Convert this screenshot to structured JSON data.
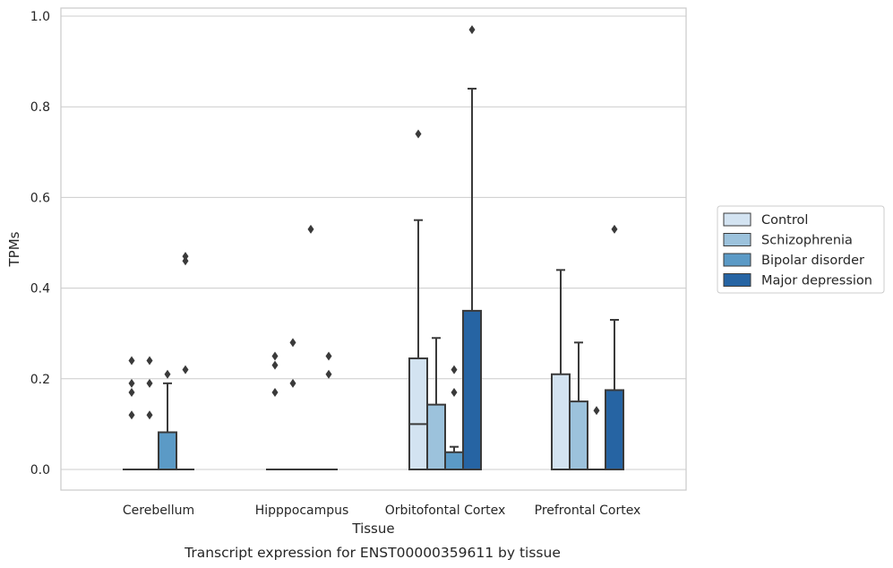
{
  "chart_data": {
    "type": "box",
    "xlabel": "Tissue",
    "ylabel": "TPMs",
    "caption": "Transcript expression for ENST00000359611 by tissue",
    "categories": [
      "Cerebellum",
      "Hipppocampus",
      "Orbitofontal Cortex",
      "Prefrontal Cortex"
    ],
    "ylim": [
      -0.048,
      1.02
    ],
    "yticks": [
      "0.0",
      "0.2",
      "0.4",
      "0.6",
      "0.8",
      "1.0"
    ],
    "ytick_values": [
      0,
      0.2,
      0.4,
      0.6,
      0.8,
      1.0
    ],
    "grid": "horizontal",
    "legend_position": "right",
    "series": [
      {
        "name": "Control",
        "color": "#d3e3f1",
        "boxes": [
          {
            "q1": 0,
            "median": 0,
            "q3": 0,
            "whisker_low": 0,
            "whisker_high": 0,
            "outliers": [
              0.12,
              0.17,
              0.19,
              0.24
            ]
          },
          {
            "q1": 0,
            "median": 0,
            "q3": 0,
            "whisker_low": 0,
            "whisker_high": 0,
            "outliers": [
              0.17,
              0.23,
              0.25
            ]
          },
          {
            "q1": 0,
            "median": 0.1,
            "q3": 0.245,
            "whisker_low": 0,
            "whisker_high": 0.55,
            "outliers": [
              0.74
            ]
          },
          {
            "q1": 0,
            "median": 0,
            "q3": 0.21,
            "whisker_low": 0,
            "whisker_high": 0.44,
            "outliers": []
          }
        ]
      },
      {
        "name": "Schizophrenia",
        "color": "#9cc2dc",
        "boxes": [
          {
            "q1": 0,
            "median": 0,
            "q3": 0,
            "whisker_low": 0,
            "whisker_high": 0,
            "outliers": [
              0.12,
              0.19,
              0.24
            ]
          },
          {
            "q1": 0,
            "median": 0,
            "q3": 0,
            "whisker_low": 0,
            "whisker_high": 0,
            "outliers": [
              0.19,
              0.28
            ]
          },
          {
            "q1": 0,
            "median": 0,
            "q3": 0.143,
            "whisker_low": 0,
            "whisker_high": 0.29,
            "outliers": []
          },
          {
            "q1": 0,
            "median": 0,
            "q3": 0.15,
            "whisker_low": 0,
            "whisker_high": 0.28,
            "outliers": []
          }
        ]
      },
      {
        "name": "Bipolar disorder",
        "color": "#5b9ac6",
        "boxes": [
          {
            "q1": 0,
            "median": 0,
            "q3": 0.082,
            "whisker_low": 0,
            "whisker_high": 0.19,
            "outliers": [
              0.21
            ]
          },
          {
            "q1": 0,
            "median": 0,
            "q3": 0,
            "whisker_low": 0,
            "whisker_high": 0,
            "outliers": [
              0.53
            ]
          },
          {
            "q1": 0,
            "median": 0,
            "q3": 0.038,
            "whisker_low": 0,
            "whisker_high": 0.05,
            "outliers": [
              0.17,
              0.22
            ]
          },
          {
            "q1": 0,
            "median": 0,
            "q3": 0,
            "whisker_low": 0,
            "whisker_high": 0,
            "outliers": [
              0.13
            ]
          }
        ]
      },
      {
        "name": "Major depression",
        "color": "#2664a3",
        "boxes": [
          {
            "q1": 0,
            "median": 0,
            "q3": 0,
            "whisker_low": 0,
            "whisker_high": 0,
            "outliers": [
              0.22,
              0.46,
              0.47
            ]
          },
          {
            "q1": 0,
            "median": 0,
            "q3": 0,
            "whisker_low": 0,
            "whisker_high": 0,
            "outliers": [
              0.21,
              0.25
            ]
          },
          {
            "q1": 0,
            "median": 0,
            "q3": 0.35,
            "whisker_low": 0,
            "whisker_high": 0.84,
            "outliers": [
              0.97
            ]
          },
          {
            "q1": 0,
            "median": 0,
            "q3": 0.175,
            "whisker_low": 0,
            "whisker_high": 0.33,
            "outliers": [
              0.53
            ]
          }
        ]
      }
    ]
  }
}
